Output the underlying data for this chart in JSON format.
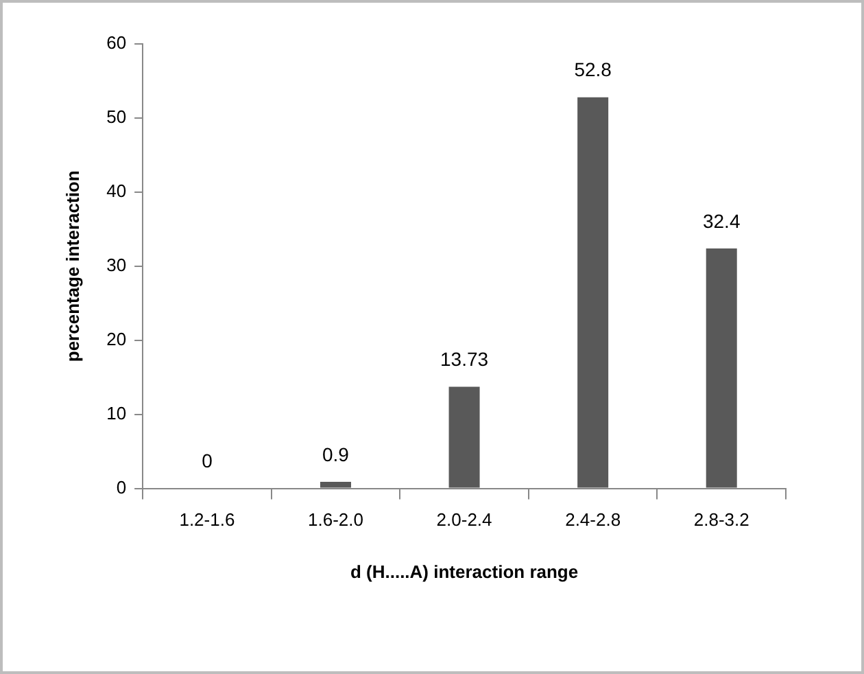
{
  "chart_data": {
    "type": "bar",
    "xlabel": "d (H.....A) interaction range",
    "ylabel": "percentage interaction",
    "categories": [
      "1.2-1.6",
      "1.6-2.0",
      "2.0-2.4",
      "2.4-2.8",
      "2.8-3.2"
    ],
    "values": [
      0,
      0.9,
      13.73,
      52.8,
      32.4
    ],
    "color": "#595959",
    "ylim": [
      0,
      60
    ],
    "yticks": [
      0,
      10,
      20,
      30,
      40,
      50,
      60
    ],
    "grid": false,
    "legend": false,
    "data_labels": true
  }
}
